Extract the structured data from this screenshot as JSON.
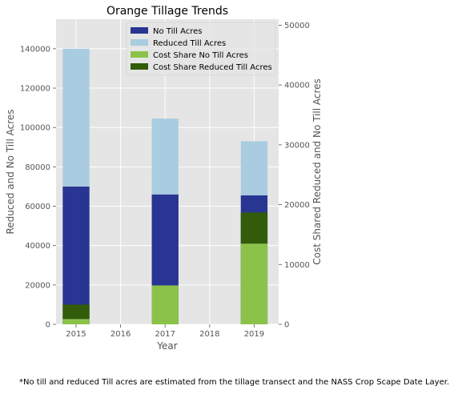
{
  "chart_data": {
    "type": "bar",
    "title": "Orange Tillage Trends",
    "xlabel": "Year",
    "ylabel": "Reduced and No Till Acres",
    "y2label": "Cost Shared Reduced and No Till Acres",
    "x_ticks": [
      "2015",
      "2016",
      "2017",
      "2018",
      "2019"
    ],
    "ylim": [
      0,
      155000
    ],
    "y_ticks": [
      "0",
      "20000",
      "40000",
      "60000",
      "80000",
      "100000",
      "120000",
      "140000"
    ],
    "y2lim": [
      0,
      51000
    ],
    "y2_ticks": [
      "0",
      "10000",
      "20000",
      "30000",
      "40000",
      "50000"
    ],
    "grid": true,
    "legend_position": "top-right",
    "primary_series": [
      {
        "name": "No Till Acres",
        "color": "#283593",
        "x": [
          2015,
          2017,
          2019
        ],
        "values": [
          70000,
          66000,
          65500
        ],
        "stack_base": [
          0,
          0,
          0
        ]
      },
      {
        "name": "Reduced Till Acres",
        "color": "#a9cce0",
        "x": [
          2015,
          2017,
          2019
        ],
        "values": [
          70000,
          38500,
          27500
        ],
        "stack_base": [
          70000,
          66000,
          65500
        ]
      }
    ],
    "secondary_series": [
      {
        "name": "Cost Share No Till Acres",
        "color": "#8bc34a",
        "x": [
          2015,
          2017,
          2019
        ],
        "values": [
          900,
          6500,
          13500
        ],
        "stack_base": [
          0,
          0,
          0
        ]
      },
      {
        "name": "Cost Share Reduced Till Acres",
        "color": "#335c0a",
        "x": [
          2015,
          2017,
          2019
        ],
        "values": [
          2400,
          0,
          5200
        ],
        "stack_base": [
          900,
          6500,
          13500
        ]
      }
    ]
  },
  "footnote": "*No till and reduced Till acres are estimated from the tillage transect and the NASS Crop Scape Date Layer."
}
